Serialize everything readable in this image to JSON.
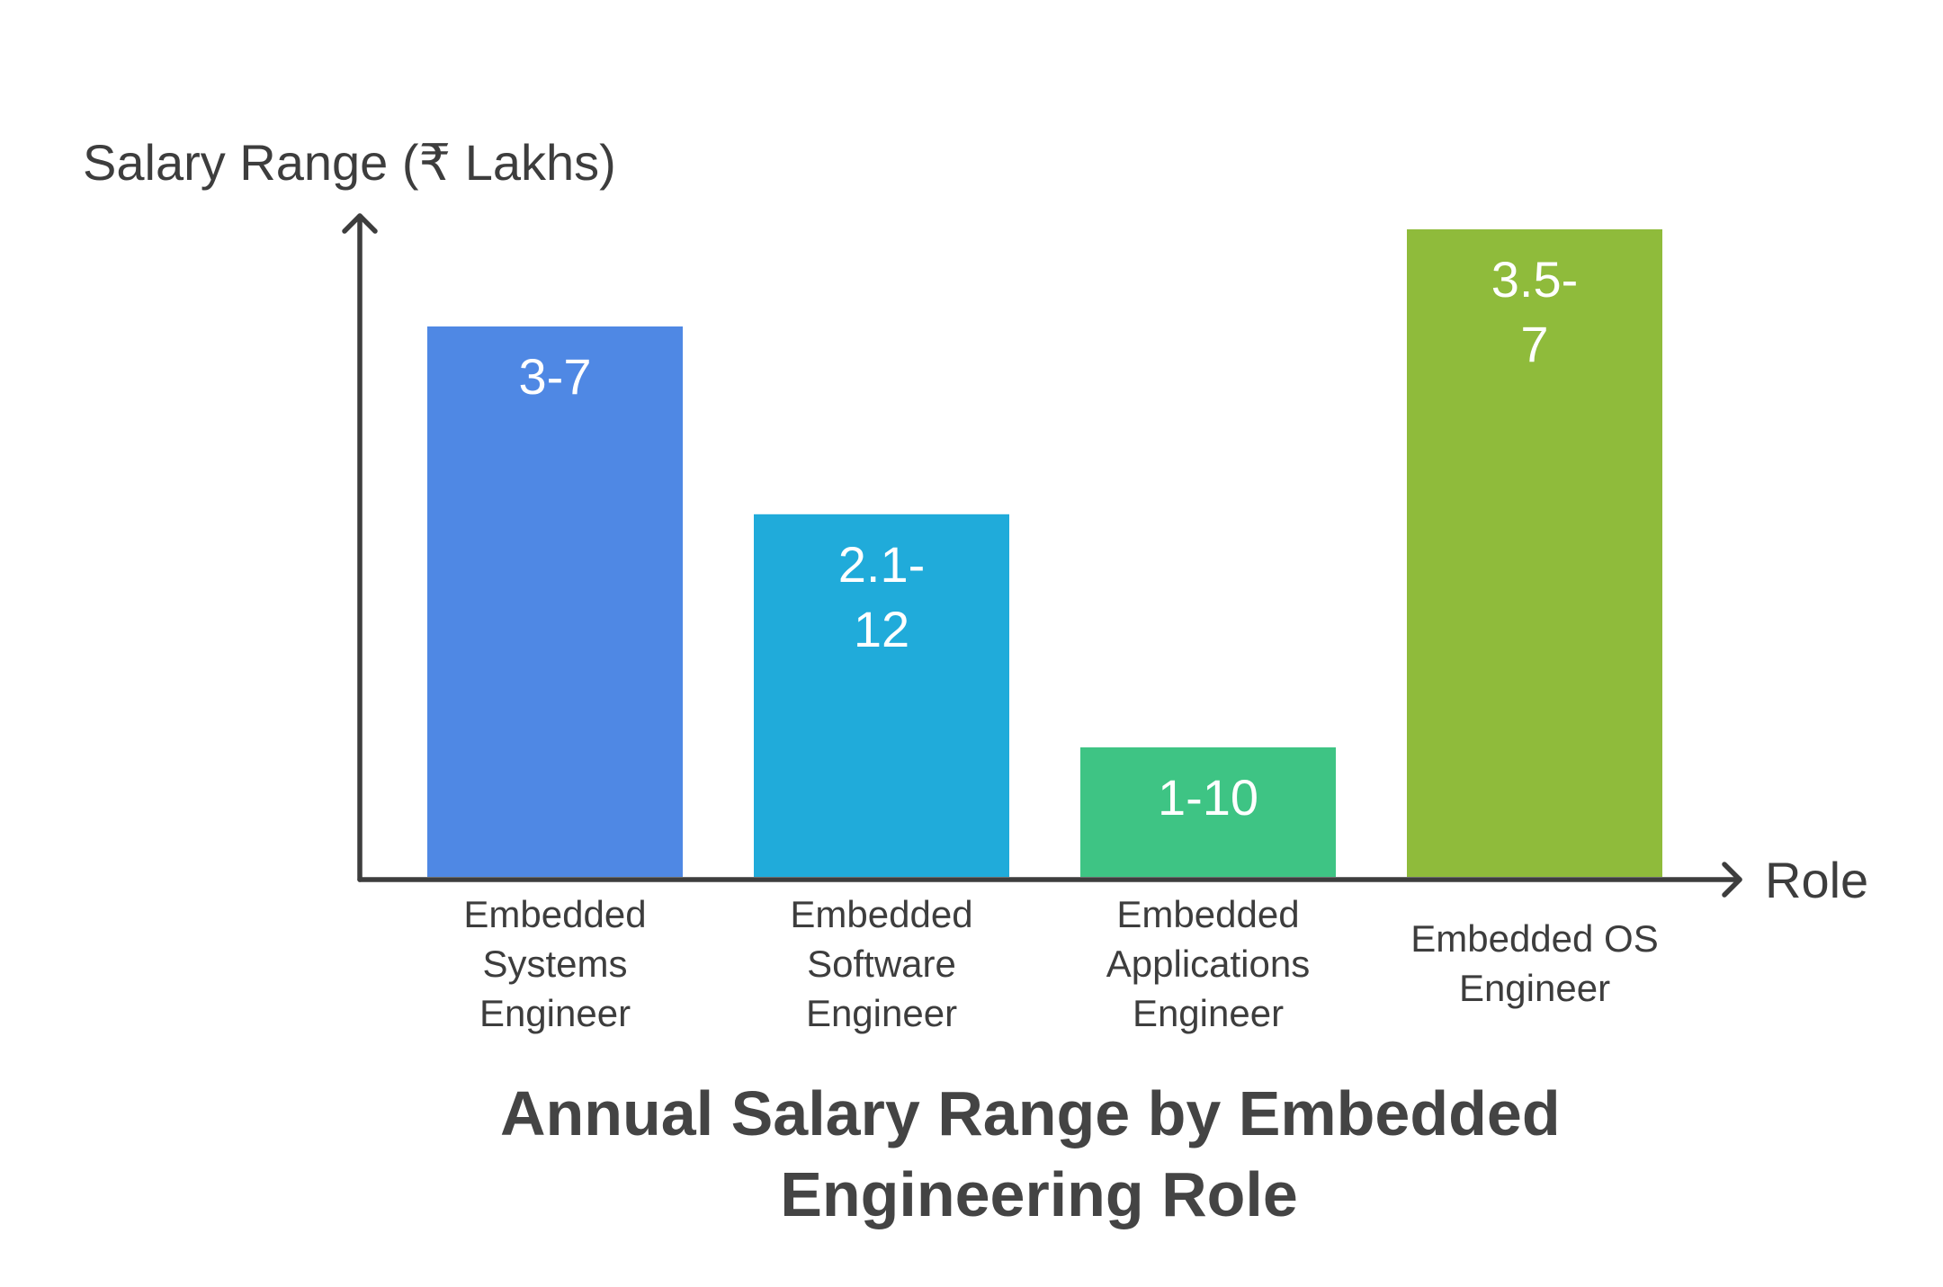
{
  "chart_data": {
    "type": "bar",
    "title": "Annual Salary Range by Embedded Engineering Role",
    "title_lines": [
      "Annual Salary Range by Embedded",
      "Engineering Role"
    ],
    "ylabel": "Salary Range (₹ Lakhs)",
    "xlabel": "Role",
    "categories": [
      "Embedded Systems Engineer",
      "Embedded Software Engineer",
      "Embedded Applications Engineer",
      "Embedded OS Engineer"
    ],
    "category_lines": [
      [
        "Embedded",
        "Systems",
        "Engineer"
      ],
      [
        "Embedded",
        "Software",
        "Engineer"
      ],
      [
        "Embedded",
        "Applications",
        "Engineer"
      ],
      [
        "Embedded OS",
        "Engineer"
      ]
    ],
    "labels": [
      "3-7",
      "2.1-12",
      "1-10",
      "3.5-7"
    ],
    "label_lines": [
      [
        "3-7"
      ],
      [
        "2.1-",
        "12"
      ],
      [
        "1-10"
      ],
      [
        "3.5-",
        "7"
      ]
    ],
    "relative_heights": [
      0.85,
      0.56,
      0.2,
      1.0
    ],
    "colors": [
      "#4f88e4",
      "#20abda",
      "#3ec484",
      "#8fbb3b"
    ],
    "grid": false,
    "legend": "none"
  }
}
